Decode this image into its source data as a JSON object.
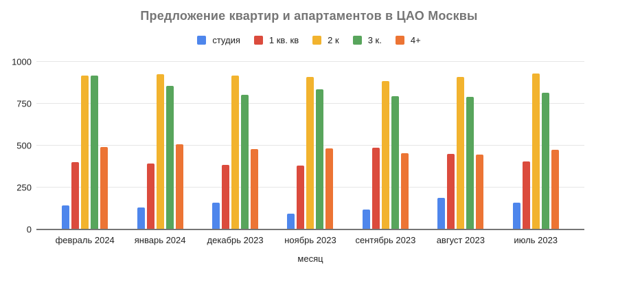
{
  "chart_data": {
    "type": "bar",
    "title": "Предложение квартир и апартаментов в ЦАО Москвы",
    "xlabel": "месяц",
    "ylabel": "",
    "ylim": [
      0,
      1000
    ],
    "yticks": [
      0,
      250,
      500,
      750,
      1000
    ],
    "grid": true,
    "legend_position": "top-center",
    "categories": [
      "февраль 2024",
      "январь 2024",
      "декабрь 2023",
      "ноябрь 2023",
      "сентябрь 2023",
      "август 2023",
      "июль 2023"
    ],
    "series": [
      {
        "name": "студия",
        "color": "#4e86ec",
        "values": [
          145,
          130,
          160,
          95,
          118,
          188,
          160
        ]
      },
      {
        "name": "1 кв. кв",
        "color": "#db4b3d",
        "values": [
          400,
          395,
          385,
          380,
          488,
          450,
          405
        ]
      },
      {
        "name": "2 к",
        "color": "#f2b32e",
        "values": [
          920,
          925,
          920,
          910,
          885,
          910,
          930
        ]
      },
      {
        "name": "3 к.",
        "color": "#58a55c",
        "values": [
          920,
          855,
          805,
          835,
          795,
          790,
          815
        ]
      },
      {
        "name": "4+",
        "color": "#ec7434",
        "values": [
          490,
          510,
          480,
          483,
          455,
          445,
          475
        ]
      }
    ]
  }
}
